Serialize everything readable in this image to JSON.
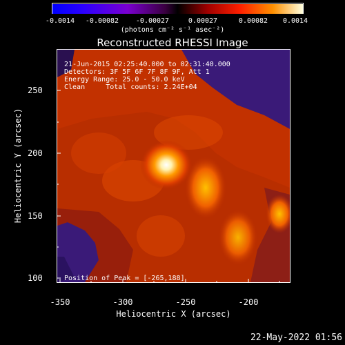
{
  "colorbar": {
    "tick_labels": [
      "-0.0014",
      "-0.00082",
      "-0.00027",
      "0.00027",
      "0.00082",
      "0.0014"
    ],
    "units": "(photons cm⁻² s⁻¹ asec⁻²)"
  },
  "title": "Reconstructed RHESSI Image",
  "annotations": {
    "line1": "21-Jun-2015 02:25:40.000 to 02:31:40.000",
    "line2": "Detectors: 3F 5F 6F 7F 8F 9F, Att 1",
    "line3": "Energy Range: 25.0 - 50.0 keV",
    "line4": "Clean     Total counts: 2.24E+04",
    "peak": "Position of Peak = [-265,188]"
  },
  "axes": {
    "xlabel": "Heliocentric X (arcsec)",
    "ylabel": "Heliocentric Y (arcsec)",
    "xticks": [
      "-350",
      "-300",
      "-250",
      "-200"
    ],
    "yticks": [
      "250",
      "200",
      "150",
      "100"
    ]
  },
  "timestamp": "22-May-2022 01:56",
  "colors": {
    "background": "#000000",
    "purple": "#3a1a7a",
    "red": "#c82800",
    "yellow": "#ffd000"
  }
}
